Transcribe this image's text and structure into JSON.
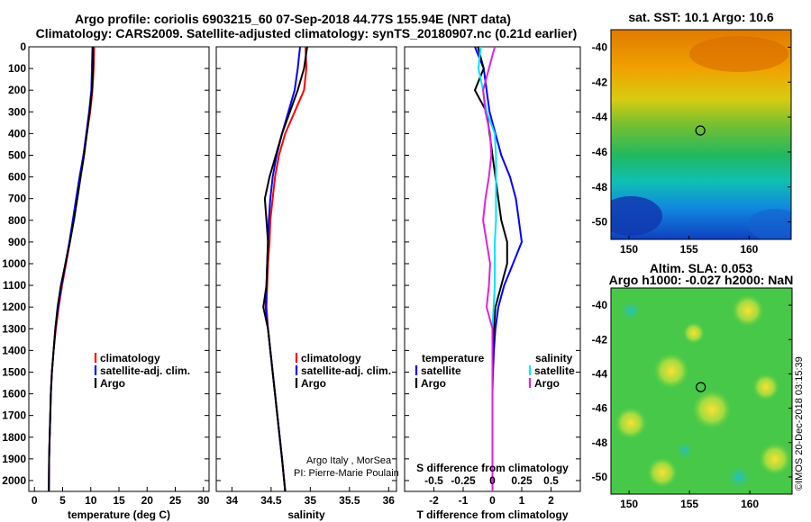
{
  "header": {
    "title_line1": "Argo profile: coriolis 6903215_60 07-Sep-2018 44.77S 155.94E (NRT data)",
    "title_line2": "Climatology: CARS2009. Satellite-adjusted climatology: synTS_20180907.nc (0.21d earlier)"
  },
  "colors": {
    "climatology": "#ff0000",
    "satellite": "#0000ff",
    "argo": "#000000",
    "satellite_salinity": "#00e5ff",
    "argo_salinity": "#e020e0"
  },
  "chart_data": [
    {
      "id": "temperature",
      "type": "line",
      "xlabel": "temperature (deg C)",
      "ylabel": "",
      "xlim": [
        -1,
        31
      ],
      "ylim": [
        2050,
        0
      ],
      "xticks": [
        "0",
        "5",
        "10",
        "15",
        "20",
        "25",
        "30"
      ],
      "yticks": [
        "0",
        "100",
        "200",
        "300",
        "400",
        "500",
        "600",
        "700",
        "800",
        "900",
        "1000",
        "1100",
        "1200",
        "1300",
        "1400",
        "1500",
        "1600",
        "1700",
        "1800",
        "1900",
        "2000"
      ],
      "legend": [
        "climatology",
        "satellite-adj. clim.",
        "Argo"
      ],
      "series": [
        {
          "name": "climatology",
          "color_key": "climatology",
          "x": [
            10.6,
            10.5,
            10.3,
            9.9,
            9.3,
            8.7,
            8.1,
            7.5,
            6.9,
            6.3,
            5.6,
            4.9,
            4.3,
            3.8,
            3.4,
            3.1,
            2.9,
            2.8,
            2.7,
            2.6,
            2.55
          ],
          "y": [
            0,
            100,
            200,
            300,
            400,
            500,
            600,
            700,
            800,
            900,
            1000,
            1100,
            1200,
            1300,
            1400,
            1500,
            1600,
            1700,
            1800,
            1900,
            2050
          ]
        },
        {
          "name": "satellite-adj. clim.",
          "color_key": "satellite",
          "x": [
            10.3,
            10.2,
            10.1,
            9.7,
            9.2,
            8.7,
            8.0,
            7.4,
            6.8,
            6.2,
            5.5,
            4.8,
            4.2,
            3.7,
            3.4,
            3.1,
            2.9,
            2.8,
            2.7,
            2.6,
            2.55
          ],
          "y": [
            0,
            100,
            200,
            300,
            400,
            500,
            600,
            700,
            800,
            900,
            1000,
            1100,
            1200,
            1300,
            1400,
            1500,
            1600,
            1700,
            1800,
            1900,
            2050
          ]
        },
        {
          "name": "Argo",
          "color_key": "argo",
          "x": [
            10.4,
            10.4,
            10.2,
            9.8,
            9.3,
            8.8,
            8.2,
            7.6,
            7.0,
            6.3,
            5.5,
            4.7,
            4.1,
            3.7,
            3.4,
            3.1,
            2.9,
            2.8,
            2.7,
            2.6,
            2.55
          ],
          "y": [
            0,
            100,
            200,
            300,
            400,
            500,
            600,
            700,
            800,
            900,
            1000,
            1100,
            1200,
            1300,
            1400,
            1500,
            1600,
            1700,
            1800,
            1900,
            2050
          ]
        }
      ]
    },
    {
      "id": "salinity",
      "type": "line",
      "xlabel": "salinity",
      "ylabel": "",
      "xlim": [
        33.8,
        36.1
      ],
      "ylim": [
        2050,
        0
      ],
      "xticks": [
        "34",
        "34.5",
        "35",
        "35.5",
        "36"
      ],
      "legend": [
        "climatology",
        "satellite-adj. clim.",
        "Argo"
      ],
      "annotation_lines": [
        "Argo Italy , MorSea",
        "PI: Pierre-Marie Poulain"
      ],
      "series": [
        {
          "name": "climatology",
          "color_key": "climatology",
          "x": [
            34.94,
            34.95,
            34.92,
            34.8,
            34.68,
            34.6,
            34.55,
            34.52,
            34.49,
            34.48,
            34.46,
            34.45,
            34.44,
            34.46,
            34.49,
            34.52,
            34.55,
            34.58,
            34.61,
            34.64,
            34.68
          ],
          "y": [
            0,
            100,
            200,
            300,
            400,
            500,
            600,
            700,
            800,
            900,
            1000,
            1100,
            1200,
            1300,
            1400,
            1500,
            1600,
            1700,
            1800,
            1900,
            2050
          ]
        },
        {
          "name": "satellite-adj. clim.",
          "color_key": "satellite",
          "x": [
            34.87,
            34.84,
            34.8,
            34.72,
            34.64,
            34.57,
            34.52,
            34.49,
            34.47,
            34.46,
            34.45,
            34.44,
            34.43,
            34.46,
            34.49,
            34.52,
            34.55,
            34.58,
            34.61,
            34.64,
            34.68
          ],
          "y": [
            0,
            100,
            200,
            300,
            400,
            500,
            600,
            700,
            800,
            900,
            1000,
            1100,
            1200,
            1300,
            1400,
            1500,
            1600,
            1700,
            1800,
            1900,
            2050
          ]
        },
        {
          "name": "Argo",
          "color_key": "argo",
          "x": [
            34.96,
            34.92,
            34.84,
            34.74,
            34.64,
            34.56,
            34.48,
            34.42,
            34.44,
            34.46,
            34.45,
            34.44,
            34.4,
            34.46,
            34.49,
            34.52,
            34.55,
            34.58,
            34.61,
            34.64,
            34.68
          ],
          "y": [
            0,
            100,
            200,
            300,
            400,
            500,
            600,
            700,
            800,
            900,
            1000,
            1100,
            1200,
            1300,
            1400,
            1500,
            1600,
            1700,
            1800,
            1900,
            2050
          ]
        }
      ]
    },
    {
      "id": "difference",
      "type": "line",
      "xlabel": "T difference from climatology",
      "title_top": "S difference from climatology",
      "xlim": [
        -3,
        3
      ],
      "ylim": [
        2050,
        0
      ],
      "xticks": [
        "-2",
        "-1",
        "0",
        "1",
        "2"
      ],
      "xticks_salinity": [
        "-0.5",
        "-0.25",
        "0",
        "0.25",
        "0.5"
      ],
      "legend_temperature_title": "temperature",
      "legend_salinity_title": "salinity",
      "legend_temperature": [
        "satellite",
        "Argo"
      ],
      "legend_salinity": [
        "satellite",
        "Argo"
      ],
      "series": [
        {
          "name": "satellite",
          "group": "temperature",
          "color_key": "satellite",
          "x": [
            -0.6,
            -0.3,
            -0.2,
            -0.1,
            0.1,
            0.3,
            0.6,
            0.8,
            0.9,
            1.0,
            0.7,
            0.4,
            0.2,
            0.1,
            0.05,
            0.02,
            0.0,
            0.0,
            0.0,
            0.0,
            0.0
          ],
          "y": [
            0,
            100,
            200,
            300,
            400,
            500,
            600,
            700,
            800,
            900,
            1000,
            1100,
            1200,
            1300,
            1400,
            1500,
            1600,
            1700,
            1800,
            1900,
            2050
          ]
        },
        {
          "name": "Argo",
          "group": "temperature",
          "color_key": "argo",
          "x": [
            -0.5,
            -0.3,
            -0.6,
            -0.2,
            -0.1,
            0.0,
            0.1,
            0.2,
            0.3,
            0.5,
            0.5,
            0.3,
            0.1,
            0.05,
            0.02,
            0.0,
            0.0,
            0.0,
            0.0,
            0.0,
            0.0
          ],
          "y": [
            0,
            100,
            200,
            300,
            400,
            500,
            600,
            700,
            800,
            900,
            1000,
            1100,
            1200,
            1300,
            1400,
            1500,
            1600,
            1700,
            1800,
            1900,
            2050
          ]
        },
        {
          "name": "satellite",
          "group": "salinity",
          "color_key": "satellite_salinity",
          "x": [
            -0.1,
            -0.12,
            -0.08,
            -0.05,
            0.02,
            0.03,
            0.03,
            0.03,
            0.03,
            0.02,
            0.02,
            0.02,
            0.01,
            0.0,
            0.0,
            0.0,
            0.0,
            0.0,
            0.0,
            0.0,
            0.0
          ],
          "y": [
            0,
            100,
            200,
            300,
            400,
            500,
            600,
            700,
            800,
            900,
            1000,
            1100,
            1200,
            1300,
            1400,
            1500,
            1600,
            1700,
            1800,
            1900,
            2050
          ]
        },
        {
          "name": "Argo",
          "group": "salinity",
          "color_key": "argo_salinity",
          "x": [
            0.02,
            -0.03,
            -0.08,
            -0.06,
            -0.02,
            -0.01,
            -0.03,
            -0.06,
            -0.08,
            -0.05,
            -0.02,
            -0.03,
            -0.05,
            0.0,
            0.0,
            0.0,
            0.0,
            0.0,
            0.0,
            0.0,
            0.0
          ],
          "y": [
            0,
            100,
            200,
            300,
            400,
            500,
            600,
            700,
            800,
            900,
            1000,
            1100,
            1200,
            1300,
            1400,
            1500,
            1600,
            1700,
            1800,
            1900,
            2050
          ]
        }
      ]
    },
    {
      "id": "sst-map",
      "type": "heatmap",
      "title": "sat. SST: 10.1 Argo: 10.6",
      "xticks": [
        "150",
        "155",
        "160"
      ],
      "yticks": [
        "-40",
        "-42",
        "-44",
        "-46",
        "-48",
        "-50"
      ],
      "xlim": [
        148.5,
        163.5
      ],
      "ylim": [
        -51,
        -39
      ],
      "marker": {
        "lon": 155.94,
        "lat": -44.77
      }
    },
    {
      "id": "sla-map",
      "type": "heatmap",
      "title_line1": "Altim. SLA: 0.053",
      "title_line2": "Argo h1000: -0.027 h2000: NaN",
      "xticks": [
        "150",
        "155",
        "160"
      ],
      "yticks": [
        "-40",
        "-42",
        "-44",
        "-46",
        "-48",
        "-50"
      ],
      "xlim": [
        148.5,
        163.5
      ],
      "ylim": [
        -51,
        -39
      ],
      "marker": {
        "lon": 155.94,
        "lat": -44.77
      }
    }
  ],
  "footer": {
    "credit": "©IMOS 20-Dec-2018 03:15:39"
  }
}
